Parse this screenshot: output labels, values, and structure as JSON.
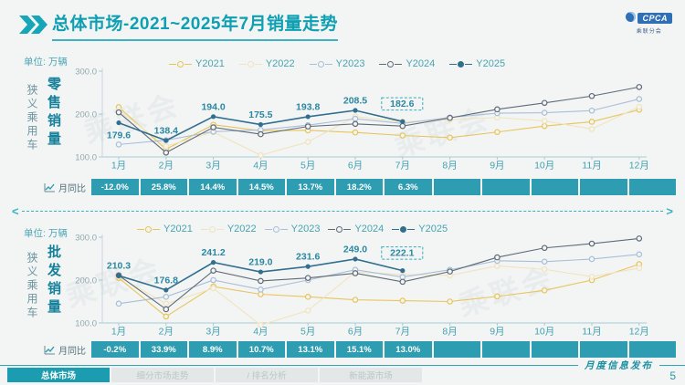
{
  "page": {
    "background": "#f3f5f5",
    "accent_teal": "#1ea7b8",
    "band_teal": "#2f9db1"
  },
  "header": {
    "title": "总体市场-2021~2025年7月销量走势",
    "logo_text": "CPCA",
    "logo_subtext": "乘联分会"
  },
  "watermark_text": "乘联会",
  "charts": [
    {
      "unit_label": "单位: 万辆",
      "side_label": "狭义乘用车",
      "measure_label": "零售销量",
      "yoy_label": "月同比"
    },
    {
      "unit_label": "单位: 万辆",
      "side_label": "狭义乘用车",
      "measure_label": "批发销量",
      "yoy_label": "月同比"
    }
  ],
  "chart_data": [
    {
      "type": "line",
      "title": "狭义乘用车零售销量",
      "unit": "万辆",
      "categories": [
        "1月",
        "2月",
        "3月",
        "4月",
        "5月",
        "6月",
        "7月",
        "8月",
        "9月",
        "10月",
        "11月",
        "12月"
      ],
      "ylim": [
        100,
        300
      ],
      "yticks": [
        300,
        200,
        100
      ],
      "legend_position": "top-center",
      "grid": false,
      "series": [
        {
          "name": "Y2021",
          "color": "#e8c45c",
          "marker": "open",
          "values": [
            216,
            118,
            175,
            161,
            162,
            157,
            150,
            145,
            158,
            172,
            182,
            210
          ]
        },
        {
          "name": "Y2022",
          "color": "#f1e3bd",
          "marker": "open",
          "values": [
            209,
            125,
            158,
            104,
            135,
            194,
            182,
            187,
            192,
            184,
            165,
            217
          ]
        },
        {
          "name": "Y2023",
          "color": "#a9bed9",
          "marker": "open",
          "values": [
            129,
            139,
            159,
            163,
            174,
            189,
            178,
            192,
            202,
            203,
            208,
            235
          ]
        },
        {
          "name": "Y2024",
          "color": "#5f6b76",
          "marker": "open",
          "values": [
            204,
            110,
            169,
            153,
            171,
            177,
            172,
            191,
            211,
            226,
            242,
            263
          ]
        },
        {
          "name": "Y2025",
          "color": "#326e8e",
          "marker": "filled",
          "show_labels": true,
          "values": [
            179.6,
            138.4,
            194.0,
            175.5,
            193.8,
            208.5,
            182.6
          ]
        }
      ],
      "label_below": [
        0
      ],
      "boxed_last": true,
      "yoy_values": [
        "-12.0%",
        "25.8%",
        "14.4%",
        "14.5%",
        "13.7%",
        "18.2%",
        "6.3%",
        "",
        "",
        "",
        "",
        ""
      ]
    },
    {
      "type": "line",
      "title": "狭义乘用车批发销量",
      "unit": "万辆",
      "categories": [
        "1月",
        "2月",
        "3月",
        "4月",
        "5月",
        "6月",
        "7月",
        "8月",
        "9月",
        "10月",
        "11月",
        "12月"
      ],
      "ylim": [
        100,
        300
      ],
      "yticks": [
        300,
        200,
        100
      ],
      "legend_position": "top-center",
      "grid": false,
      "series": [
        {
          "name": "Y2021",
          "color": "#e8c45c",
          "marker": "open",
          "values": [
            205,
            115,
            185,
            167,
            161,
            154,
            152,
            150,
            162,
            176,
            200,
            237
          ]
        },
        {
          "name": "Y2022",
          "color": "#f1e3bd",
          "marker": "open",
          "values": [
            208,
            145,
            181,
            95,
            129,
            219,
            213,
            211,
            233,
            225,
            208,
            228
          ]
        },
        {
          "name": "Y2023",
          "color": "#a9bed9",
          "marker": "open",
          "values": [
            145,
            161,
            200,
            178,
            200,
            224,
            207,
            224,
            245,
            243,
            249,
            260
          ]
        },
        {
          "name": "Y2024",
          "color": "#5f6b76",
          "marker": "open",
          "values": [
            211,
            132,
            222,
            198,
            205,
            216,
            196,
            220,
            253,
            275,
            285,
            297
          ]
        },
        {
          "name": "Y2025",
          "color": "#326e8e",
          "marker": "filled",
          "show_labels": true,
          "values": [
            210.3,
            176.8,
            241.2,
            219.0,
            231.6,
            249.0,
            222.1
          ]
        }
      ],
      "label_below": [],
      "boxed_last": true,
      "yoy_values": [
        "-0.2%",
        "33.9%",
        "8.9%",
        "10.7%",
        "13.1%",
        "15.1%",
        "13.0%",
        "",
        "",
        "",
        "",
        ""
      ]
    }
  ],
  "footer": {
    "tabs": [
      {
        "label": "总体市场",
        "active": true
      },
      {
        "label": "细分市场走势",
        "active": false
      },
      {
        "label": "/ 排名分析",
        "active": false
      },
      {
        "label": "新能源市场",
        "active": false
      }
    ],
    "right_label": "月度信息发布",
    "page_number": "5"
  }
}
